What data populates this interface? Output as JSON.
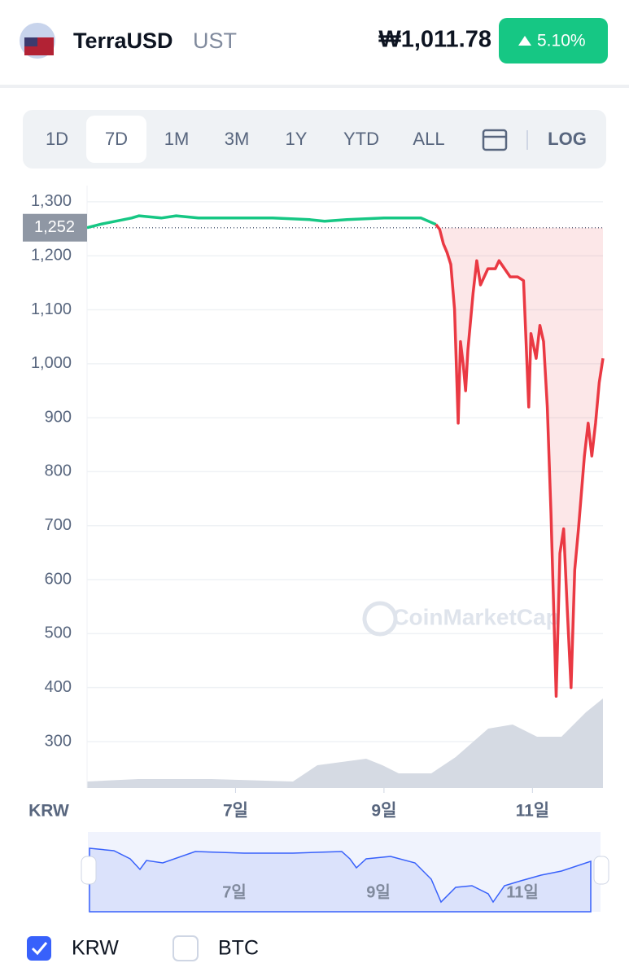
{
  "header": {
    "name": "TerraUSD",
    "symbol": "UST",
    "price": "₩1,011.78",
    "change": "5.10%"
  },
  "tabs": [
    "1D",
    "7D",
    "1M",
    "3M",
    "1Y",
    "YTD",
    "ALL",
    "LOG"
  ],
  "selected_tab": "7D",
  "chart_data": {
    "type": "line",
    "watermark": "CoinMarketCap",
    "axis_unit": "KRW",
    "current_value": {
      "value": 1252,
      "label": "1,252"
    },
    "color_above": "#16c784",
    "color_below": "#ea3943",
    "x": [
      5.0,
      5.2,
      5.6,
      5.7,
      6.0,
      6.2,
      6.5,
      7.0,
      7.5,
      8.0,
      8.2,
      8.5,
      9.0,
      9.3,
      9.5,
      9.7,
      9.75,
      9.8,
      9.85,
      9.9,
      9.95,
      10.0,
      10.03,
      10.07,
      10.1,
      10.13,
      10.2,
      10.25,
      10.3,
      10.4,
      10.5,
      10.55,
      10.7,
      10.8,
      10.88,
      10.95,
      10.98,
      11.05,
      11.1,
      11.15,
      11.2,
      11.25,
      11.32,
      11.37,
      11.42,
      11.47,
      11.52,
      11.57,
      11.62,
      11.7,
      11.75,
      11.8,
      11.85,
      11.9,
      11.95
    ],
    "values": [
      1252,
      1259,
      1270,
      1274,
      1270,
      1274,
      1270,
      1270,
      1270,
      1267,
      1264,
      1267,
      1270,
      1270,
      1270,
      1258,
      1249,
      1222,
      1206,
      1184,
      1101,
      890,
      1041,
      995,
      950,
      1025,
      1131,
      1191,
      1146,
      1176,
      1176,
      1191,
      1161,
      1161,
      1154,
      920,
      1056,
      1010,
      1071,
      1041,
      920,
      724,
      384,
      649,
      694,
      543,
      400,
      618,
      694,
      829,
      890,
      829,
      890,
      965,
      1010
    ],
    "xlim": [
      5.0,
      11.95
    ],
    "ylim": [
      214,
      1330
    ],
    "xticks": [
      {
        "value": 7,
        "label": "7일"
      },
      {
        "value": 9,
        "label": "9일"
      },
      {
        "value": 11,
        "label": "11일"
      }
    ],
    "yticks": [
      300,
      400,
      500,
      600,
      700,
      800,
      900,
      {
        "value": 1000,
        "label": "1,000"
      },
      {
        "value": 1100,
        "label": "1,100"
      },
      {
        "value": 1200,
        "label": "1,200"
      },
      {
        "value": 1300,
        "label": "1,300"
      }
    ],
    "grid": true
  },
  "navigator": {
    "labels": [
      "7일",
      "9일",
      "11일"
    ]
  },
  "currencies": [
    {
      "label": "KRW",
      "checked": true
    },
    {
      "label": "BTC",
      "checked": false
    }
  ]
}
